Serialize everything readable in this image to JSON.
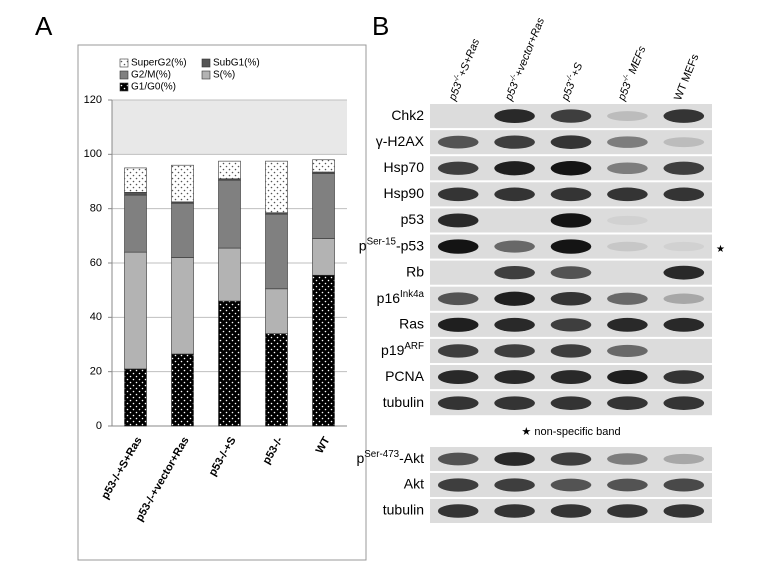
{
  "panel_labels": [
    "A",
    "B"
  ],
  "chart_data": {
    "type": "stacked_bar",
    "categories": [
      "p53-/-+S+Ras",
      "p53-/-+vector+Ras",
      "p53-/-+S",
      "p53-/-",
      "WT"
    ],
    "series": [
      {
        "name": "SuperG2(%)",
        "color": "#ffffff",
        "pattern": "dots",
        "values": [
          9,
          13.5,
          6.5,
          19,
          4.5
        ]
      },
      {
        "name": "SubG1(%)",
        "color": "#555555",
        "values": [
          1,
          0.5,
          0.5,
          0.5,
          0.5
        ]
      },
      {
        "name": "G2/M(%)",
        "color": "#808080",
        "values": [
          21,
          20,
          25,
          27.5,
          24
        ]
      },
      {
        "name": "S(%)",
        "color": "#b3b3b3",
        "values": [
          43,
          35.5,
          19.5,
          16.5,
          13.5
        ]
      },
      {
        "name": "G1/G0(%)",
        "color": "#000000",
        "pattern": "dots",
        "values": [
          21,
          26.5,
          46,
          34,
          55.5
        ]
      }
    ],
    "ylim": [
      0,
      120
    ],
    "yticks": [
      0,
      20,
      40,
      60,
      80,
      100,
      120
    ],
    "grid": true,
    "legend": "top"
  },
  "blot": {
    "lanes": [
      {
        "pre": "p53",
        "sup": "-/-",
        "post": "+S+Ras"
      },
      {
        "pre": "p53",
        "sup": "-/-",
        "post": "+vector+Ras"
      },
      {
        "pre": "p53",
        "sup": "-/-",
        "post": "+S"
      },
      {
        "pre": "p53",
        "sup": "-/-",
        "post": " MEFs"
      },
      "WT MEFs"
    ],
    "rows": [
      "Chk2",
      "γ-H2AX",
      "Hsp70",
      "Hsp90",
      "p53",
      {
        "pre": "p",
        "sup": "Ser-15",
        "post": "-p53"
      },
      "Rb",
      {
        "pre": "p16",
        "sup": "Ink4a",
        "post": ""
      },
      "Ras",
      {
        "pre": "p19",
        "sup": "ARF",
        "post": ""
      },
      "PCNA",
      "tubulin"
    ],
    "marker": "★",
    "note": "★ non-specific band",
    "lower_rows": [
      {
        "pre": "p",
        "sup": "Ser-473",
        "post": "-Akt"
      },
      "Akt",
      "tubulin"
    ]
  }
}
